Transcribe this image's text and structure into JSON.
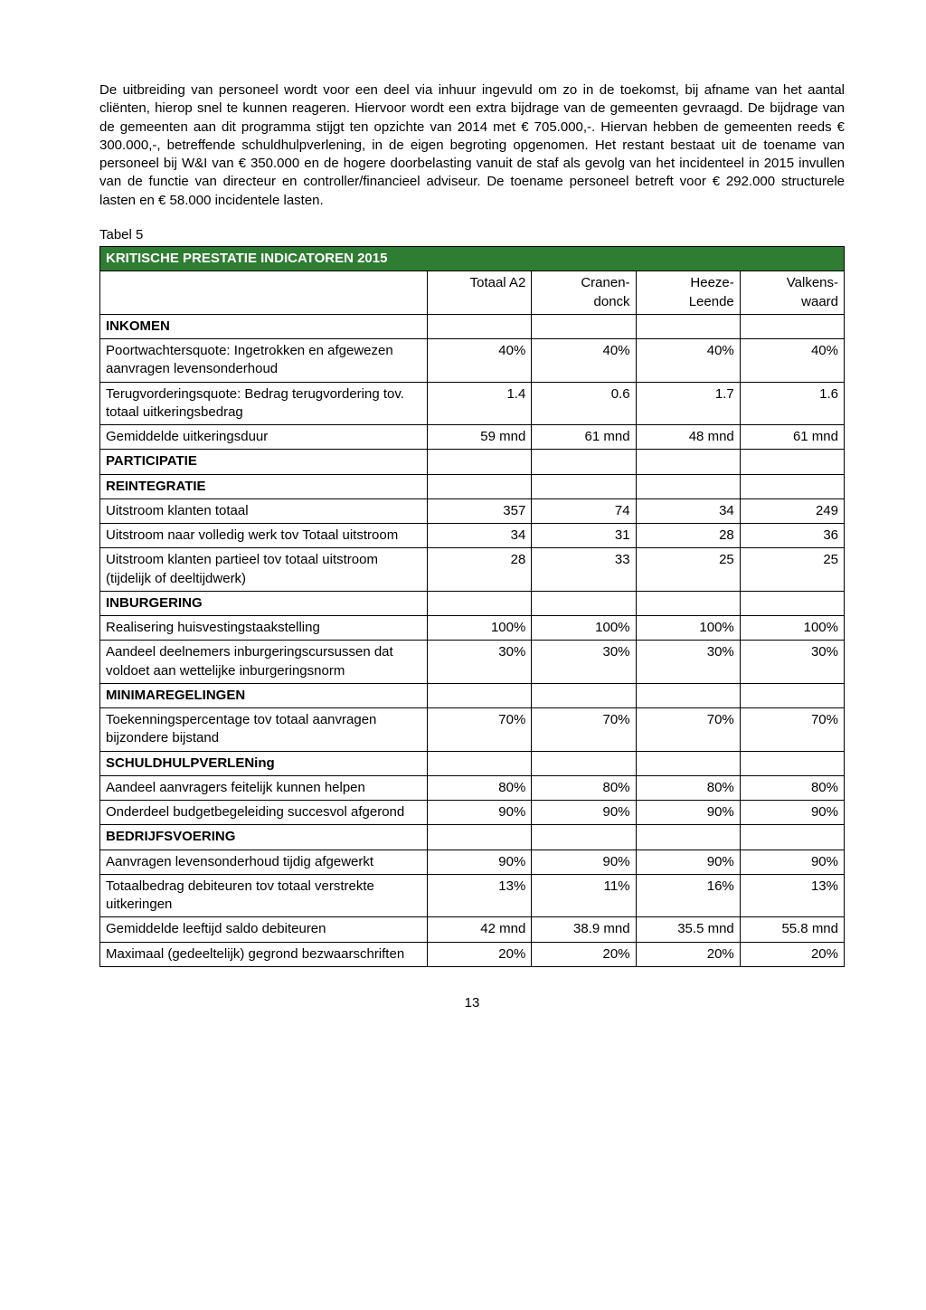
{
  "paragraph": "De uitbreiding van personeel wordt voor een deel via inhuur ingevuld om zo in de toekomst, bij afname van het aantal cliënten, hierop snel te kunnen reageren. Hiervoor wordt een extra bijdrage van de gemeenten gevraagd. De bijdrage van de gemeenten aan dit programma stijgt ten opzichte van 2014 met € 705.000,-. Hiervan hebben de gemeenten reeds € 300.000,-, betreffende schuldhulpverlening, in de eigen begroting opgenomen. Het restant bestaat uit de toename van personeel bij W&I van € 350.000 en de hogere doorbelasting vanuit de staf als gevolg van het incidenteel in 2015 invullen van de functie van directeur en controller/financieel adviseur. De toename personeel betreft voor € 292.000 structurele lasten en € 58.000 incidentele lasten.",
  "table_label": "Tabel 5",
  "table_title": "KRITISCHE PRESTATIE INDICATOREN 2015",
  "title_bg": "#2e7d32",
  "title_fg": "#ffffff",
  "columns": [
    "",
    "Totaal A2",
    "Cranen-donck",
    "Heeze-Leende",
    "Valkens-waard"
  ],
  "col_widths": [
    "44%",
    "14%",
    "14%",
    "14%",
    "14%"
  ],
  "rows": [
    {
      "type": "section",
      "label": "INKOMEN"
    },
    {
      "type": "data",
      "label": "Poortwachtersquote: Ingetrokken en afgewezen aanvragen levensonderhoud",
      "v": [
        "40%",
        "40%",
        "40%",
        "40%"
      ]
    },
    {
      "type": "data",
      "label": "Terugvorderingsquote: Bedrag terugvordering tov. totaal uitkeringsbedrag",
      "v": [
        "1.4",
        "0.6",
        "1.7",
        "1.6"
      ]
    },
    {
      "type": "data",
      "label": "Gemiddelde uitkeringsduur",
      "v": [
        "59 mnd",
        "61 mnd",
        "48 mnd",
        "61 mnd"
      ]
    },
    {
      "type": "section",
      "label": "PARTICIPATIE"
    },
    {
      "type": "section",
      "label": "REINTEGRATIE"
    },
    {
      "type": "data",
      "label": "Uitstroom klanten totaal",
      "v": [
        "357",
        "74",
        "34",
        "249"
      ]
    },
    {
      "type": "data",
      "label": "Uitstroom naar volledig werk tov Totaal uitstroom",
      "v": [
        "34",
        "31",
        "28",
        "36"
      ]
    },
    {
      "type": "data",
      "label": "Uitstroom klanten partieel tov totaal uitstroom (tijdelijk of deeltijdwerk)",
      "v": [
        "28",
        "33",
        "25",
        "25"
      ]
    },
    {
      "type": "section",
      "label": "INBURGERING"
    },
    {
      "type": "data",
      "label": "Realisering huisvestingstaakstelling",
      "v": [
        "100%",
        "100%",
        "100%",
        "100%"
      ]
    },
    {
      "type": "data",
      "label": "Aandeel deelnemers inburgeringscursussen dat voldoet aan wettelijke inburgeringsnorm",
      "v": [
        "30%",
        "30%",
        "30%",
        "30%"
      ]
    },
    {
      "type": "section",
      "label": "MINIMAREGELINGEN"
    },
    {
      "type": "data",
      "label": "Toekenningspercentage tov totaal aanvragen bijzondere bijstand",
      "v": [
        "70%",
        "70%",
        "70%",
        "70%"
      ]
    },
    {
      "type": "section",
      "label": "SCHULDHULPVERLENing"
    },
    {
      "type": "data",
      "label": "Aandeel aanvragers feitelijk kunnen helpen",
      "v": [
        "80%",
        "80%",
        "80%",
        "80%"
      ]
    },
    {
      "type": "data",
      "label": "Onderdeel budgetbegeleiding succesvol afgerond",
      "v": [
        "90%",
        "90%",
        "90%",
        "90%"
      ]
    },
    {
      "type": "section",
      "label": "BEDRIJFSVOERING"
    },
    {
      "type": "data",
      "label": "Aanvragen levensonderhoud tijdig afgewerkt",
      "v": [
        "90%",
        "90%",
        "90%",
        "90%"
      ]
    },
    {
      "type": "data",
      "label": "Totaalbedrag debiteuren tov totaal verstrekte uitkeringen",
      "v": [
        "13%",
        "11%",
        "16%",
        "13%"
      ]
    },
    {
      "type": "data",
      "label": "Gemiddelde leeftijd saldo debiteuren",
      "v": [
        "42 mnd",
        "38.9 mnd",
        "35.5 mnd",
        "55.8 mnd"
      ]
    },
    {
      "type": "data",
      "label": "Maximaal (gedeeltelijk) gegrond bezwaarschriften",
      "v": [
        "20%",
        "20%",
        "20%",
        "20%"
      ]
    }
  ],
  "page_number": "13"
}
